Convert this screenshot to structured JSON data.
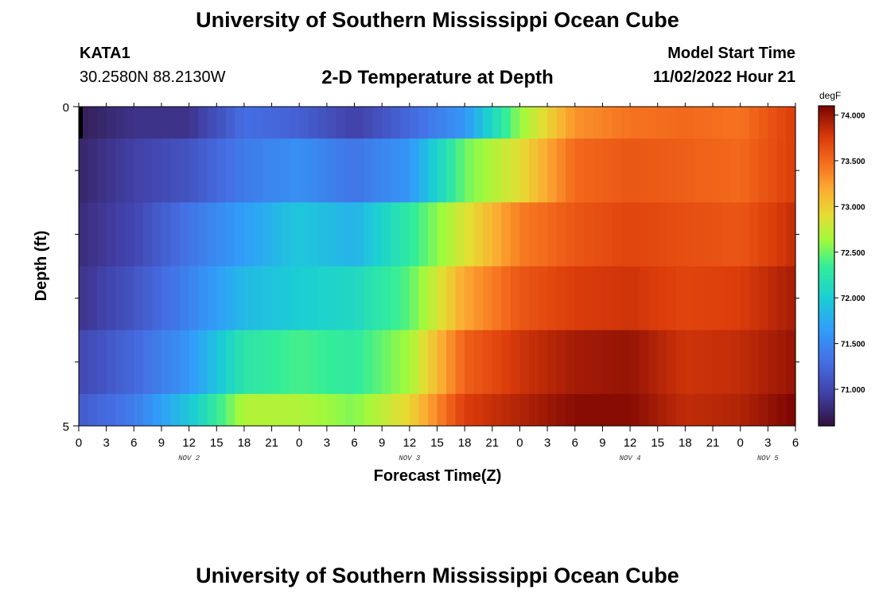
{
  "page": {
    "title": "University of Southern Mississippi Ocean Cube",
    "footer_title": "University of Southern Mississippi Ocean Cube",
    "station_id": "KATA1",
    "station_location": "30.2580N  88.2130W",
    "subtitle": "2-D Temperature at Depth",
    "model_start_label": "Model Start Time",
    "model_start_value": "11/02/2022 Hour 21"
  },
  "chart_data": {
    "type": "heatmap",
    "title": "2-D Temperature at Depth",
    "xlabel": "Forecast Time(Z)",
    "ylabel": "Depth (ft)",
    "x_tick_labels": [
      "0",
      "3",
      "6",
      "9",
      "12",
      "15",
      "18",
      "21",
      "0",
      "3",
      "6",
      "9",
      "12",
      "15",
      "18",
      "21",
      "0",
      "3",
      "6",
      "9",
      "12",
      "15",
      "18",
      "21",
      "0",
      "3",
      "6"
    ],
    "x_range_hours": [
      0,
      78
    ],
    "x_tick_step_hours": 3,
    "day_labels": [
      {
        "label": "NOV 2",
        "hour": 12
      },
      {
        "label": "NOV 3",
        "hour": 36
      },
      {
        "label": "NOV 4",
        "hour": 60
      },
      {
        "label": "NOV 5",
        "hour": 75
      }
    ],
    "y_range": [
      0,
      5
    ],
    "y_tick_labels": [
      {
        "value": 0,
        "label": "0"
      },
      {
        "value": 5,
        "label": "5"
      }
    ],
    "y_minor_ticks": [
      1,
      2,
      3,
      4
    ],
    "colorbar": {
      "unit": "degF",
      "min": 70.6,
      "max": 74.1,
      "tick_values": [
        71.0,
        71.5,
        72.0,
        72.5,
        73.0,
        73.5,
        74.0
      ],
      "tick_labels": [
        "71.000",
        "71.500",
        "72.000",
        "72.500",
        "73.000",
        "73.500",
        "74.000"
      ]
    },
    "keyframe_hours": [
      0,
      6,
      12,
      18,
      24,
      30,
      36,
      42,
      48,
      54,
      60,
      66,
      72,
      78
    ],
    "depth_rows": [
      {
        "depth": 0.25,
        "temps": [
          70.7,
          70.85,
          70.85,
          71.3,
          71.2,
          70.95,
          71.25,
          71.6,
          72.6,
          73.3,
          73.45,
          73.5,
          73.45,
          73.75
        ]
      },
      {
        "depth": 1.0,
        "temps": [
          70.75,
          70.95,
          71.1,
          71.4,
          71.55,
          71.35,
          71.6,
          72.5,
          72.9,
          73.5,
          73.6,
          73.55,
          73.5,
          73.75
        ]
      },
      {
        "depth": 2.0,
        "temps": [
          70.8,
          71.0,
          71.35,
          71.65,
          71.95,
          71.8,
          72.3,
          72.85,
          73.4,
          73.6,
          73.7,
          73.65,
          73.6,
          73.85
        ]
      },
      {
        "depth": 3.0,
        "temps": [
          70.85,
          71.1,
          71.45,
          71.85,
          72.0,
          72.1,
          72.45,
          73.2,
          73.6,
          73.75,
          73.8,
          73.7,
          73.75,
          73.95
        ]
      },
      {
        "depth": 4.0,
        "temps": [
          71.0,
          71.25,
          71.6,
          72.25,
          72.4,
          72.3,
          72.65,
          73.55,
          73.8,
          73.95,
          74.0,
          73.8,
          73.85,
          74.0
        ]
      },
      {
        "depth": 4.75,
        "temps": [
          71.15,
          71.4,
          71.95,
          72.7,
          72.7,
          72.55,
          72.95,
          73.75,
          73.9,
          74.05,
          74.05,
          73.85,
          73.9,
          74.1
        ]
      }
    ],
    "grid": false,
    "legend": "colorbar-right"
  }
}
